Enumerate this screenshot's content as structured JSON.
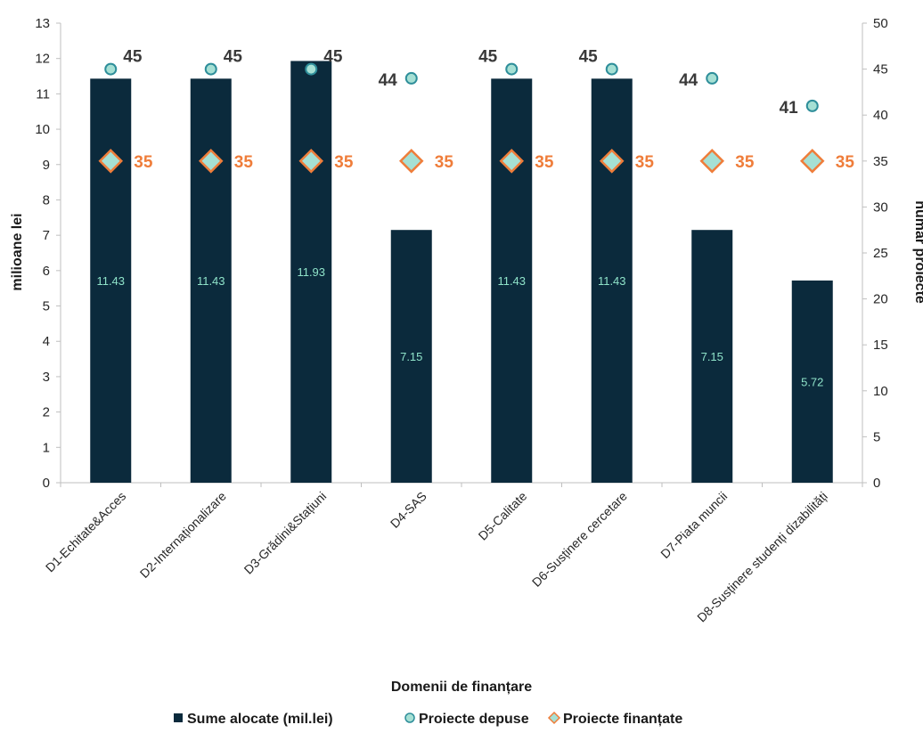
{
  "chart_data": {
    "type": "bar",
    "categories": [
      "D1-Echitate&Acces",
      "D2-Internaționalizare",
      "D3-Grădini&Stațiuni",
      "D4-SAS",
      "D5-Calitate",
      "D6-Susținere cercetare",
      "D7-Piata muncii",
      "D8-Susținere studenți dizabilități"
    ],
    "series": [
      {
        "name": "Sume alocate (mil.lei)",
        "type": "bar",
        "axis": "left",
        "color": "#0b2a3c",
        "label_color": "#8fe3c9",
        "values": [
          11.43,
          11.43,
          11.93,
          7.15,
          11.43,
          11.43,
          7.15,
          5.72
        ]
      },
      {
        "name": "Proiecte depuse",
        "type": "scatter",
        "marker": "circle",
        "axis": "right",
        "fill": "#a6e0d4",
        "stroke": "#2e8e9a",
        "values": [
          45,
          45,
          45,
          44,
          45,
          45,
          44,
          41
        ]
      },
      {
        "name": "Proiecte finanțate",
        "type": "scatter",
        "marker": "diamond",
        "axis": "right",
        "fill": "#a6e0d4",
        "stroke": "#ef7d3a",
        "values": [
          35,
          35,
          35,
          35,
          35,
          35,
          35,
          35
        ]
      }
    ],
    "xlabel": "Domenii de finanțare",
    "ylabel": "milioane lei",
    "y2label": "număr proiecte",
    "ylim": [
      0,
      13
    ],
    "y2lim": [
      0,
      50
    ],
    "yticks": [
      0,
      1,
      2,
      3,
      4,
      5,
      6,
      7,
      8,
      9,
      10,
      11,
      12,
      13
    ],
    "y2ticks": [
      0,
      5,
      10,
      15,
      20,
      25,
      30,
      35,
      40,
      45,
      50
    ],
    "grid": false,
    "legend_position": "bottom"
  }
}
